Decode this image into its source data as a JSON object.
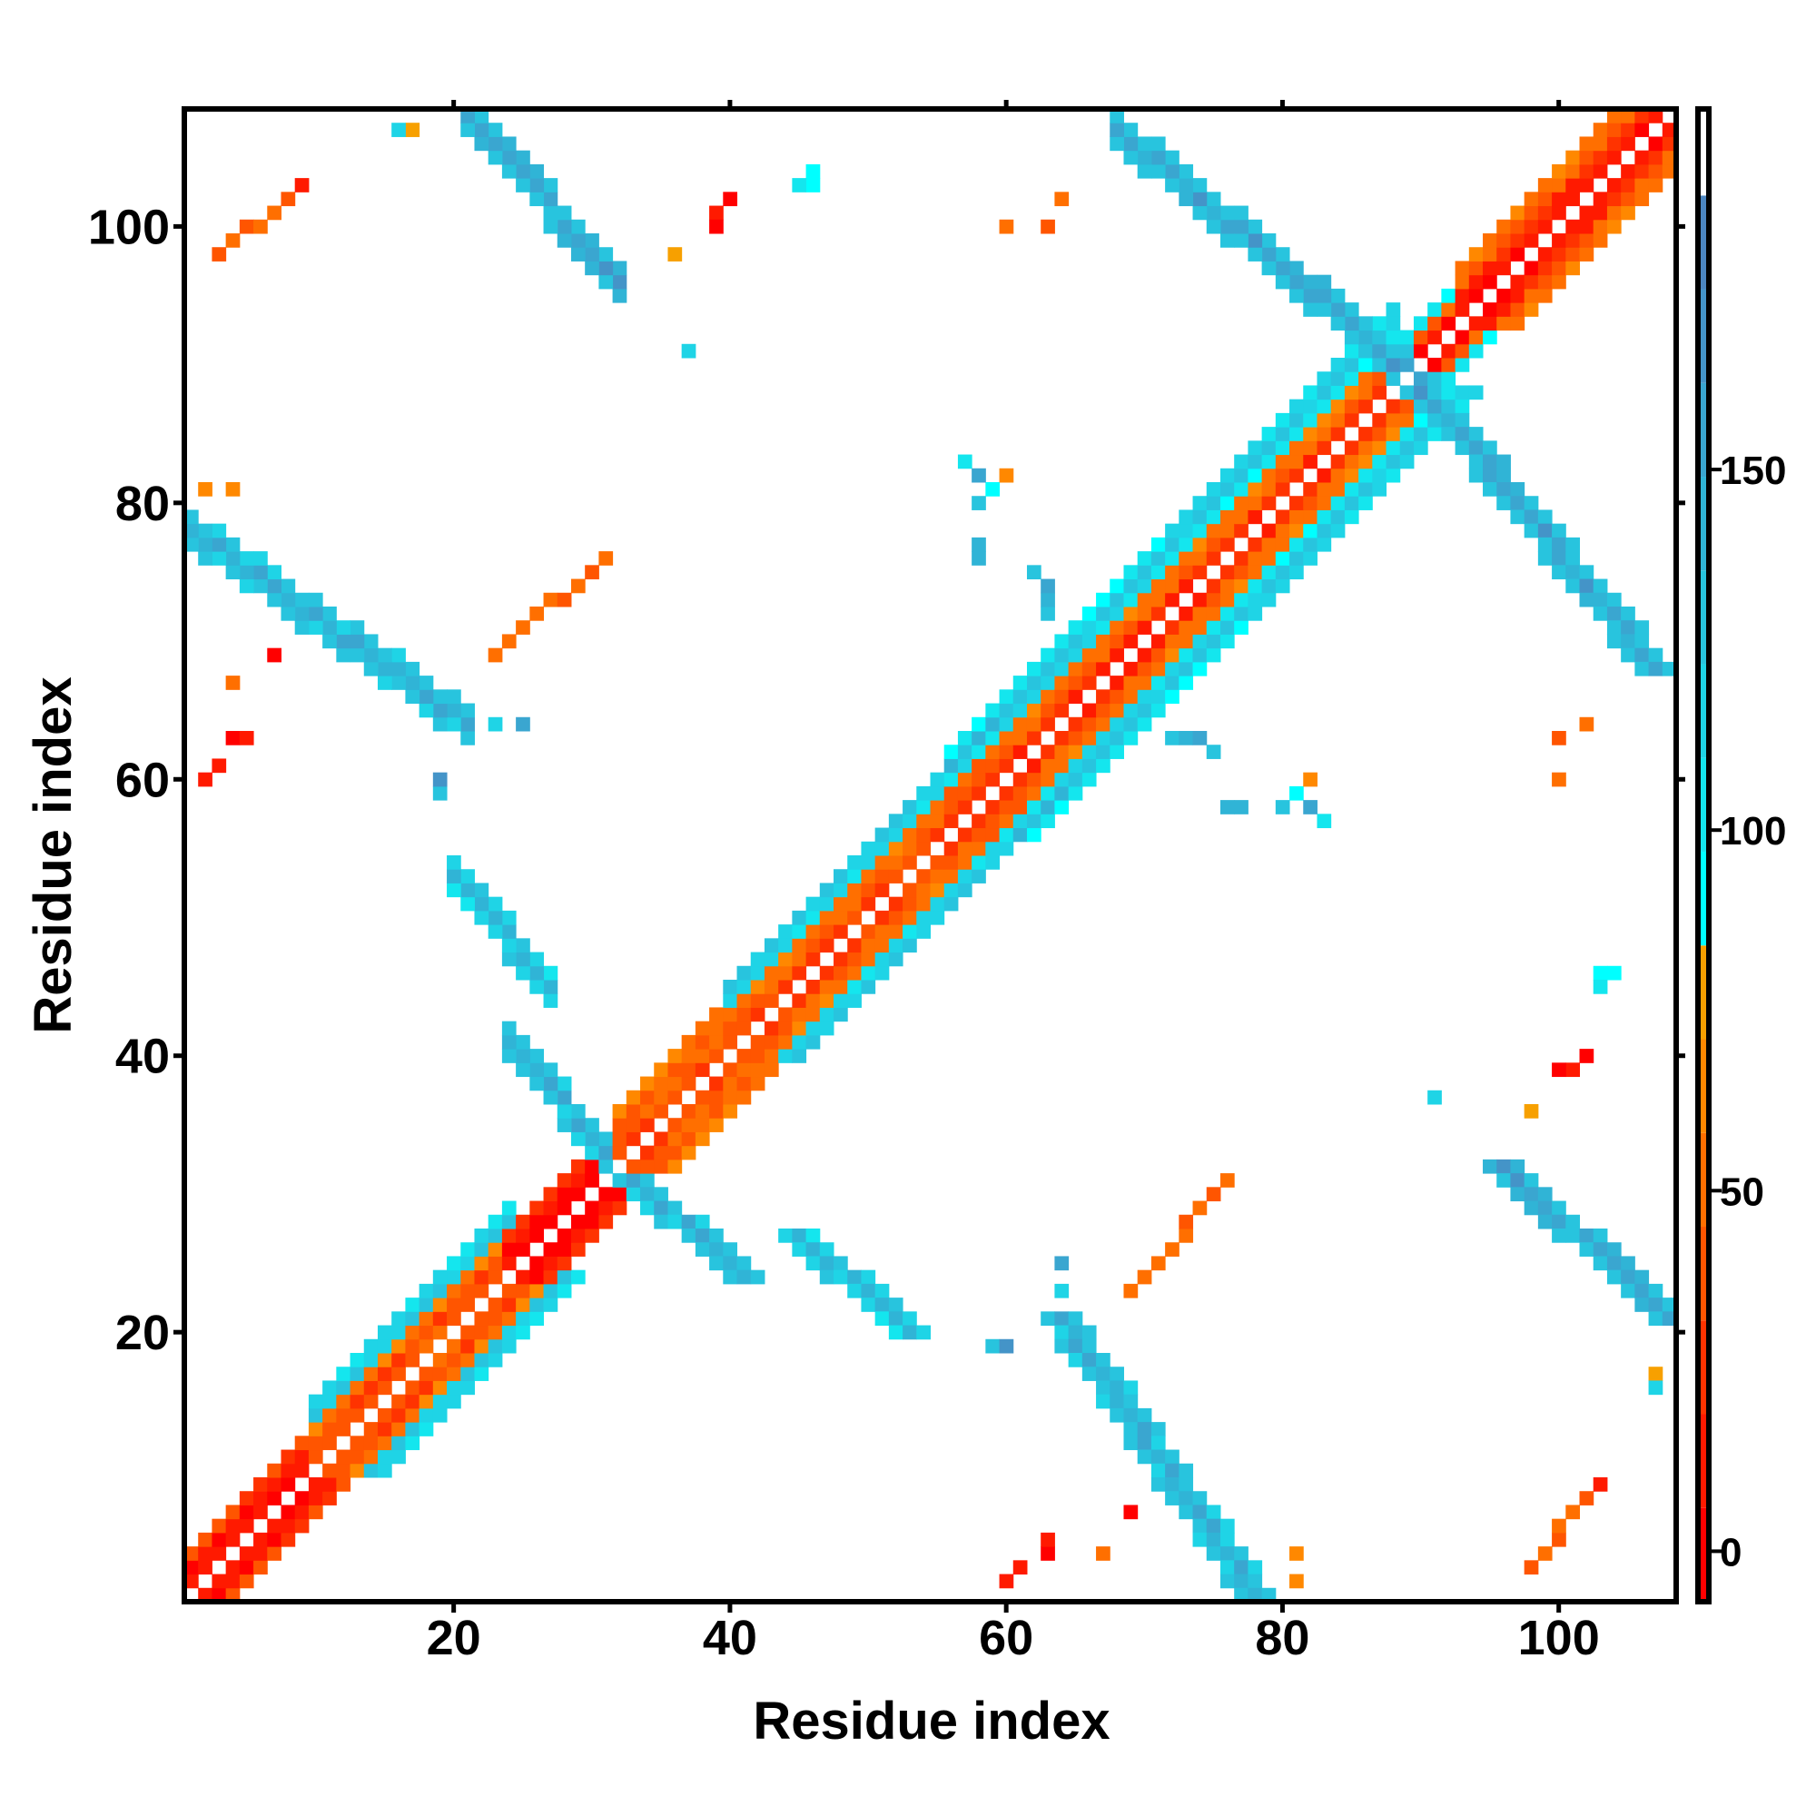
{
  "chart_data": {
    "type": "heatmap",
    "title": "",
    "xlabel": "Residue index",
    "ylabel": "Residue index",
    "xlim": [
      0.5,
      108.5
    ],
    "ylim": [
      0.5,
      108.5
    ],
    "n_residues": 108,
    "symmetric": true,
    "xticks": [
      "20",
      "40",
      "60",
      "80",
      "100"
    ],
    "xtick_values": [
      20,
      40,
      60,
      80,
      100
    ],
    "yticks": [
      "20",
      "40",
      "60",
      "80",
      "100"
    ],
    "ytick_values": [
      20,
      40,
      60,
      80,
      100
    ],
    "colorbar": {
      "range": [
        -7,
        200
      ],
      "ticks": [
        "0",
        "50",
        "100",
        "150"
      ],
      "tick_values": [
        0,
        50,
        100,
        150
      ],
      "levels": [
        {
          "min": -7,
          "color": "#ff0000"
        },
        {
          "min": 6,
          "color": "#ff1a00"
        },
        {
          "min": 19,
          "color": "#ff3300"
        },
        {
          "min": 32,
          "color": "#ff5500"
        },
        {
          "min": 45,
          "color": "#ff6f00"
        },
        {
          "min": 58,
          "color": "#ff8800"
        },
        {
          "min": 71,
          "color": "#f7a000"
        },
        {
          "min": 84,
          "color": "#00ffff"
        },
        {
          "min": 97,
          "color": "#14e6ee"
        },
        {
          "min": 110,
          "color": "#1fd4e6"
        },
        {
          "min": 123,
          "color": "#28c4de"
        },
        {
          "min": 136,
          "color": "#30b4d6"
        },
        {
          "min": 149,
          "color": "#3aa6d0"
        },
        {
          "min": 162,
          "color": "#4494c8"
        },
        {
          "min": 175,
          "color": "#4c86c0"
        },
        {
          "min": 188,
          "color": "#ffffff"
        }
      ]
    },
    "diagonal_bands": [
      {
        "start": 1,
        "end": 10,
        "offset_values": [
          10,
          5,
          35
        ]
      },
      {
        "start": 10,
        "end": 24,
        "offset_values": [
          40,
          35,
          55,
          125,
          110
        ]
      },
      {
        "start": 24,
        "end": 32,
        "offset_values": [
          2,
          8,
          20
        ]
      },
      {
        "start": 32,
        "end": 40,
        "offset_values": [
          25,
          45,
          40,
          60
        ]
      },
      {
        "start": 40,
        "end": 56,
        "offset_values": [
          30,
          45,
          55,
          112,
          125
        ]
      },
      {
        "start": 56,
        "end": 72,
        "offset_values": [
          20,
          40,
          50,
          112,
          130,
          100
        ]
      },
      {
        "start": 72,
        "end": 88,
        "offset_values": [
          20,
          45,
          55,
          100,
          125,
          112
        ]
      },
      {
        "start": 88,
        "end": 93,
        "offset_values": [
          5,
          40,
          100
        ]
      },
      {
        "start": 93,
        "end": 108,
        "offset_values": [
          8,
          20,
          45,
          60
        ]
      }
    ],
    "strands": [
      {
        "from": [
          33,
          31
        ],
        "to": [
          41,
          24
        ],
        "half_width": 1,
        "value": 150
      },
      {
        "from": [
          45,
          27
        ],
        "to": [
          53,
          20
        ],
        "half_width": 1,
        "value": 140
      },
      {
        "from": [
          64,
          21
        ],
        "to": [
          78,
          1
        ],
        "half_width": 1,
        "value": 150
      },
      {
        "from": [
          96,
          32
        ],
        "to": [
          108,
          21
        ],
        "half_width": 1,
        "value": 158
      },
      {
        "from": [
          88,
          91
        ],
        "to": [
          107,
          68
        ],
        "half_width": 1,
        "value": 155
      },
      {
        "from": [
          98,
          3
        ],
        "to": [
          102,
          8
        ],
        "half_width": 0,
        "value": 45
      },
      {
        "from": [
          69,
          23
        ],
        "to": [
          76,
          31
        ],
        "half_width": 0,
        "value": 48
      }
    ],
    "points": [
      {
        "x": 80,
        "y": 58,
        "value": 125
      },
      {
        "x": 81,
        "y": 59,
        "value": 90
      },
      {
        "x": 82,
        "y": 60,
        "value": 60
      },
      {
        "x": 83,
        "y": 57,
        "value": 100
      },
      {
        "x": 82,
        "y": 58,
        "value": 150
      },
      {
        "x": 72,
        "y": 63,
        "value": 130
      },
      {
        "x": 73,
        "y": 63,
        "value": 140
      },
      {
        "x": 74,
        "y": 63,
        "value": 150
      },
      {
        "x": 75,
        "y": 62,
        "value": 120
      },
      {
        "x": 76,
        "y": 58,
        "value": 150
      },
      {
        "x": 77,
        "y": 58,
        "value": 140
      },
      {
        "x": 60,
        "y": 100,
        "value": 40
      },
      {
        "x": 102,
        "y": 64,
        "value": 45
      },
      {
        "x": 100,
        "y": 63,
        "value": 45
      },
      {
        "x": 100,
        "y": 60,
        "value": 40
      },
      {
        "x": 103,
        "y": 46,
        "value": 95
      },
      {
        "x": 104,
        "y": 46,
        "value": 95
      },
      {
        "x": 101,
        "y": 39,
        "value": 5
      },
      {
        "x": 102,
        "y": 40,
        "value": 5
      },
      {
        "x": 100,
        "y": 39,
        "value": 5
      },
      {
        "x": 98,
        "y": 36,
        "value": 70
      },
      {
        "x": 91,
        "y": 37,
        "value": 130
      },
      {
        "x": 64,
        "y": 25,
        "value": 160
      },
      {
        "x": 64,
        "y": 23,
        "value": 110
      },
      {
        "x": 59,
        "y": 19,
        "value": 120
      },
      {
        "x": 60,
        "y": 19,
        "value": 160
      },
      {
        "x": 61,
        "y": 3,
        "value": 5
      },
      {
        "x": 60,
        "y": 2,
        "value": 5
      },
      {
        "x": 63,
        "y": 4,
        "value": 10
      },
      {
        "x": 63,
        "y": 5,
        "value": 10
      },
      {
        "x": 69,
        "y": 7,
        "value": 5
      },
      {
        "x": 67,
        "y": 4,
        "value": 50
      },
      {
        "x": 81,
        "y": 2,
        "value": 65
      },
      {
        "x": 107,
        "y": 17,
        "value": 65
      },
      {
        "x": 107,
        "y": 16,
        "value": 100
      },
      {
        "x": 103,
        "y": 9,
        "value": 10
      },
      {
        "x": 45,
        "y": 103,
        "value": 100
      },
      {
        "x": 46,
        "y": 104,
        "value": 100
      },
      {
        "x": 37,
        "y": 91,
        "value": 125
      },
      {
        "x": 16,
        "y": 107,
        "value": 110
      },
      {
        "x": 17,
        "y": 107,
        "value": 70
      },
      {
        "x": 9,
        "y": 103,
        "value": 5
      },
      {
        "x": 4,
        "y": 81,
        "value": 65
      },
      {
        "x": 51,
        "y": 51,
        "value": 0
      }
    ]
  }
}
